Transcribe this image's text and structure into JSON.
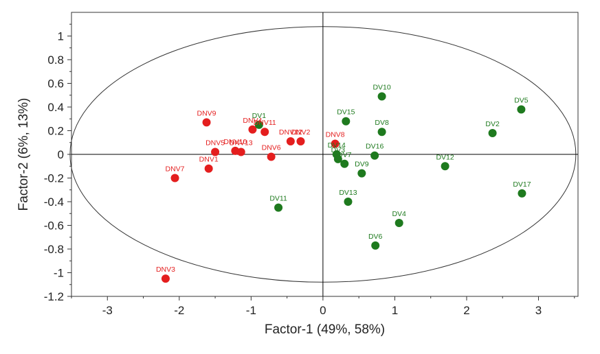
{
  "chart_data": {
    "type": "scatter",
    "xlabel": "Factor-1 (49%, 58%)",
    "ylabel": "Factor-2 (6%, 13%)",
    "xlim": [
      -3.5,
      3.55
    ],
    "ylim": [
      -1.2,
      1.2
    ],
    "x_ticks": [
      -3,
      -2,
      -1,
      0,
      1,
      2,
      3
    ],
    "y_ticks": [
      1,
      0.8,
      0.6,
      0.4,
      0.2,
      0,
      -0.2,
      -0.4,
      -0.6,
      -0.8,
      -1,
      -1.2
    ],
    "x_tick_labels": [
      "-3",
      "-2",
      "-1",
      "0",
      "1",
      "2",
      "3"
    ],
    "y_tick_labels": [
      "1",
      "0.8",
      "0.6",
      "0.4",
      "0.2",
      "0",
      "-0.2",
      "-0.4",
      "-0.6",
      "-0.8",
      "-1",
      "-1.2"
    ],
    "grid": false,
    "ellipse": {
      "rx": 3.52,
      "ry": 1.08
    },
    "series": [
      {
        "color": "#e41e1e",
        "points": [
          {
            "label": "DNV9",
            "x": -1.62,
            "y": 0.27
          },
          {
            "label": "DNV4",
            "x": -0.98,
            "y": 0.21
          },
          {
            "label": "DNV11",
            "x": -0.81,
            "y": 0.19
          },
          {
            "label": "DNV12",
            "x": -0.45,
            "y": 0.11
          },
          {
            "label": "DNV2",
            "x": -0.31,
            "y": 0.11
          },
          {
            "label": "DNV8",
            "x": 0.17,
            "y": 0.09
          },
          {
            "label": "DNV5",
            "x": -1.5,
            "y": 0.02
          },
          {
            "label": "DNV10",
            "x": -1.22,
            "y": 0.03
          },
          {
            "label": "DNV13",
            "x": -1.14,
            "y": 0.02
          },
          {
            "label": "DNV6",
            "x": -0.72,
            "y": -0.02
          },
          {
            "label": "DNV7",
            "x": -2.06,
            "y": -0.2
          },
          {
            "label": "DNV1",
            "x": -1.59,
            "y": -0.12
          },
          {
            "label": "DNV3",
            "x": -2.19,
            "y": -1.05
          }
        ]
      },
      {
        "color": "#1e7a1e",
        "points": [
          {
            "label": "DV10",
            "x": 0.82,
            "y": 0.49
          },
          {
            "label": "DV5",
            "x": 2.76,
            "y": 0.38
          },
          {
            "label": "DV1",
            "x": -0.89,
            "y": 0.25
          },
          {
            "label": "DV15",
            "x": 0.32,
            "y": 0.28
          },
          {
            "label": "DV8",
            "x": 0.82,
            "y": 0.19
          },
          {
            "label": "DV2",
            "x": 2.36,
            "y": 0.18
          },
          {
            "label": "DV14",
            "x": 0.19,
            "y": 0.0
          },
          {
            "label": "DV3",
            "x": 0.21,
            "y": -0.04
          },
          {
            "label": "DV7",
            "x": 0.3,
            "y": -0.08
          },
          {
            "label": "DV16",
            "x": 0.72,
            "y": -0.01
          },
          {
            "label": "DV12",
            "x": 1.7,
            "y": -0.1
          },
          {
            "label": "DV9",
            "x": 0.54,
            "y": -0.16
          },
          {
            "label": "DV17",
            "x": 2.77,
            "y": -0.33
          },
          {
            "label": "DV13",
            "x": 0.35,
            "y": -0.4
          },
          {
            "label": "DV11",
            "x": -0.62,
            "y": -0.45
          },
          {
            "label": "DV4",
            "x": 1.06,
            "y": -0.58
          },
          {
            "label": "DV6",
            "x": 0.73,
            "y": -0.77
          }
        ]
      }
    ]
  }
}
